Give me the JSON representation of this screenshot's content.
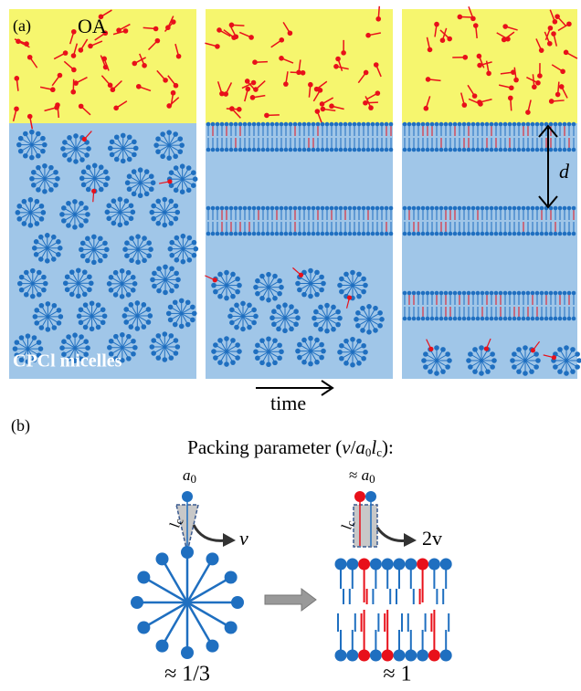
{
  "panel_a": {
    "label": "(a)",
    "oa": "OA",
    "micelles": "CPCl micelles",
    "time": "time",
    "d": "d"
  },
  "panel_b": {
    "label": "(b)",
    "title": [
      "Packing parameter (",
      "v",
      "/",
      "a",
      "0",
      "l",
      "c",
      "):"
    ],
    "cone": {
      "a": "a",
      "a_sub": "0",
      "l": "l",
      "l_sub": "c",
      "v": "v"
    },
    "cylinder": {
      "approx": "≈ ",
      "a": "a",
      "a_sub": "0",
      "l": "l",
      "l_sub": "c",
      "v": "2v"
    },
    "ratios": [
      "≈ 1/3",
      "≈ 1"
    ]
  }
}
